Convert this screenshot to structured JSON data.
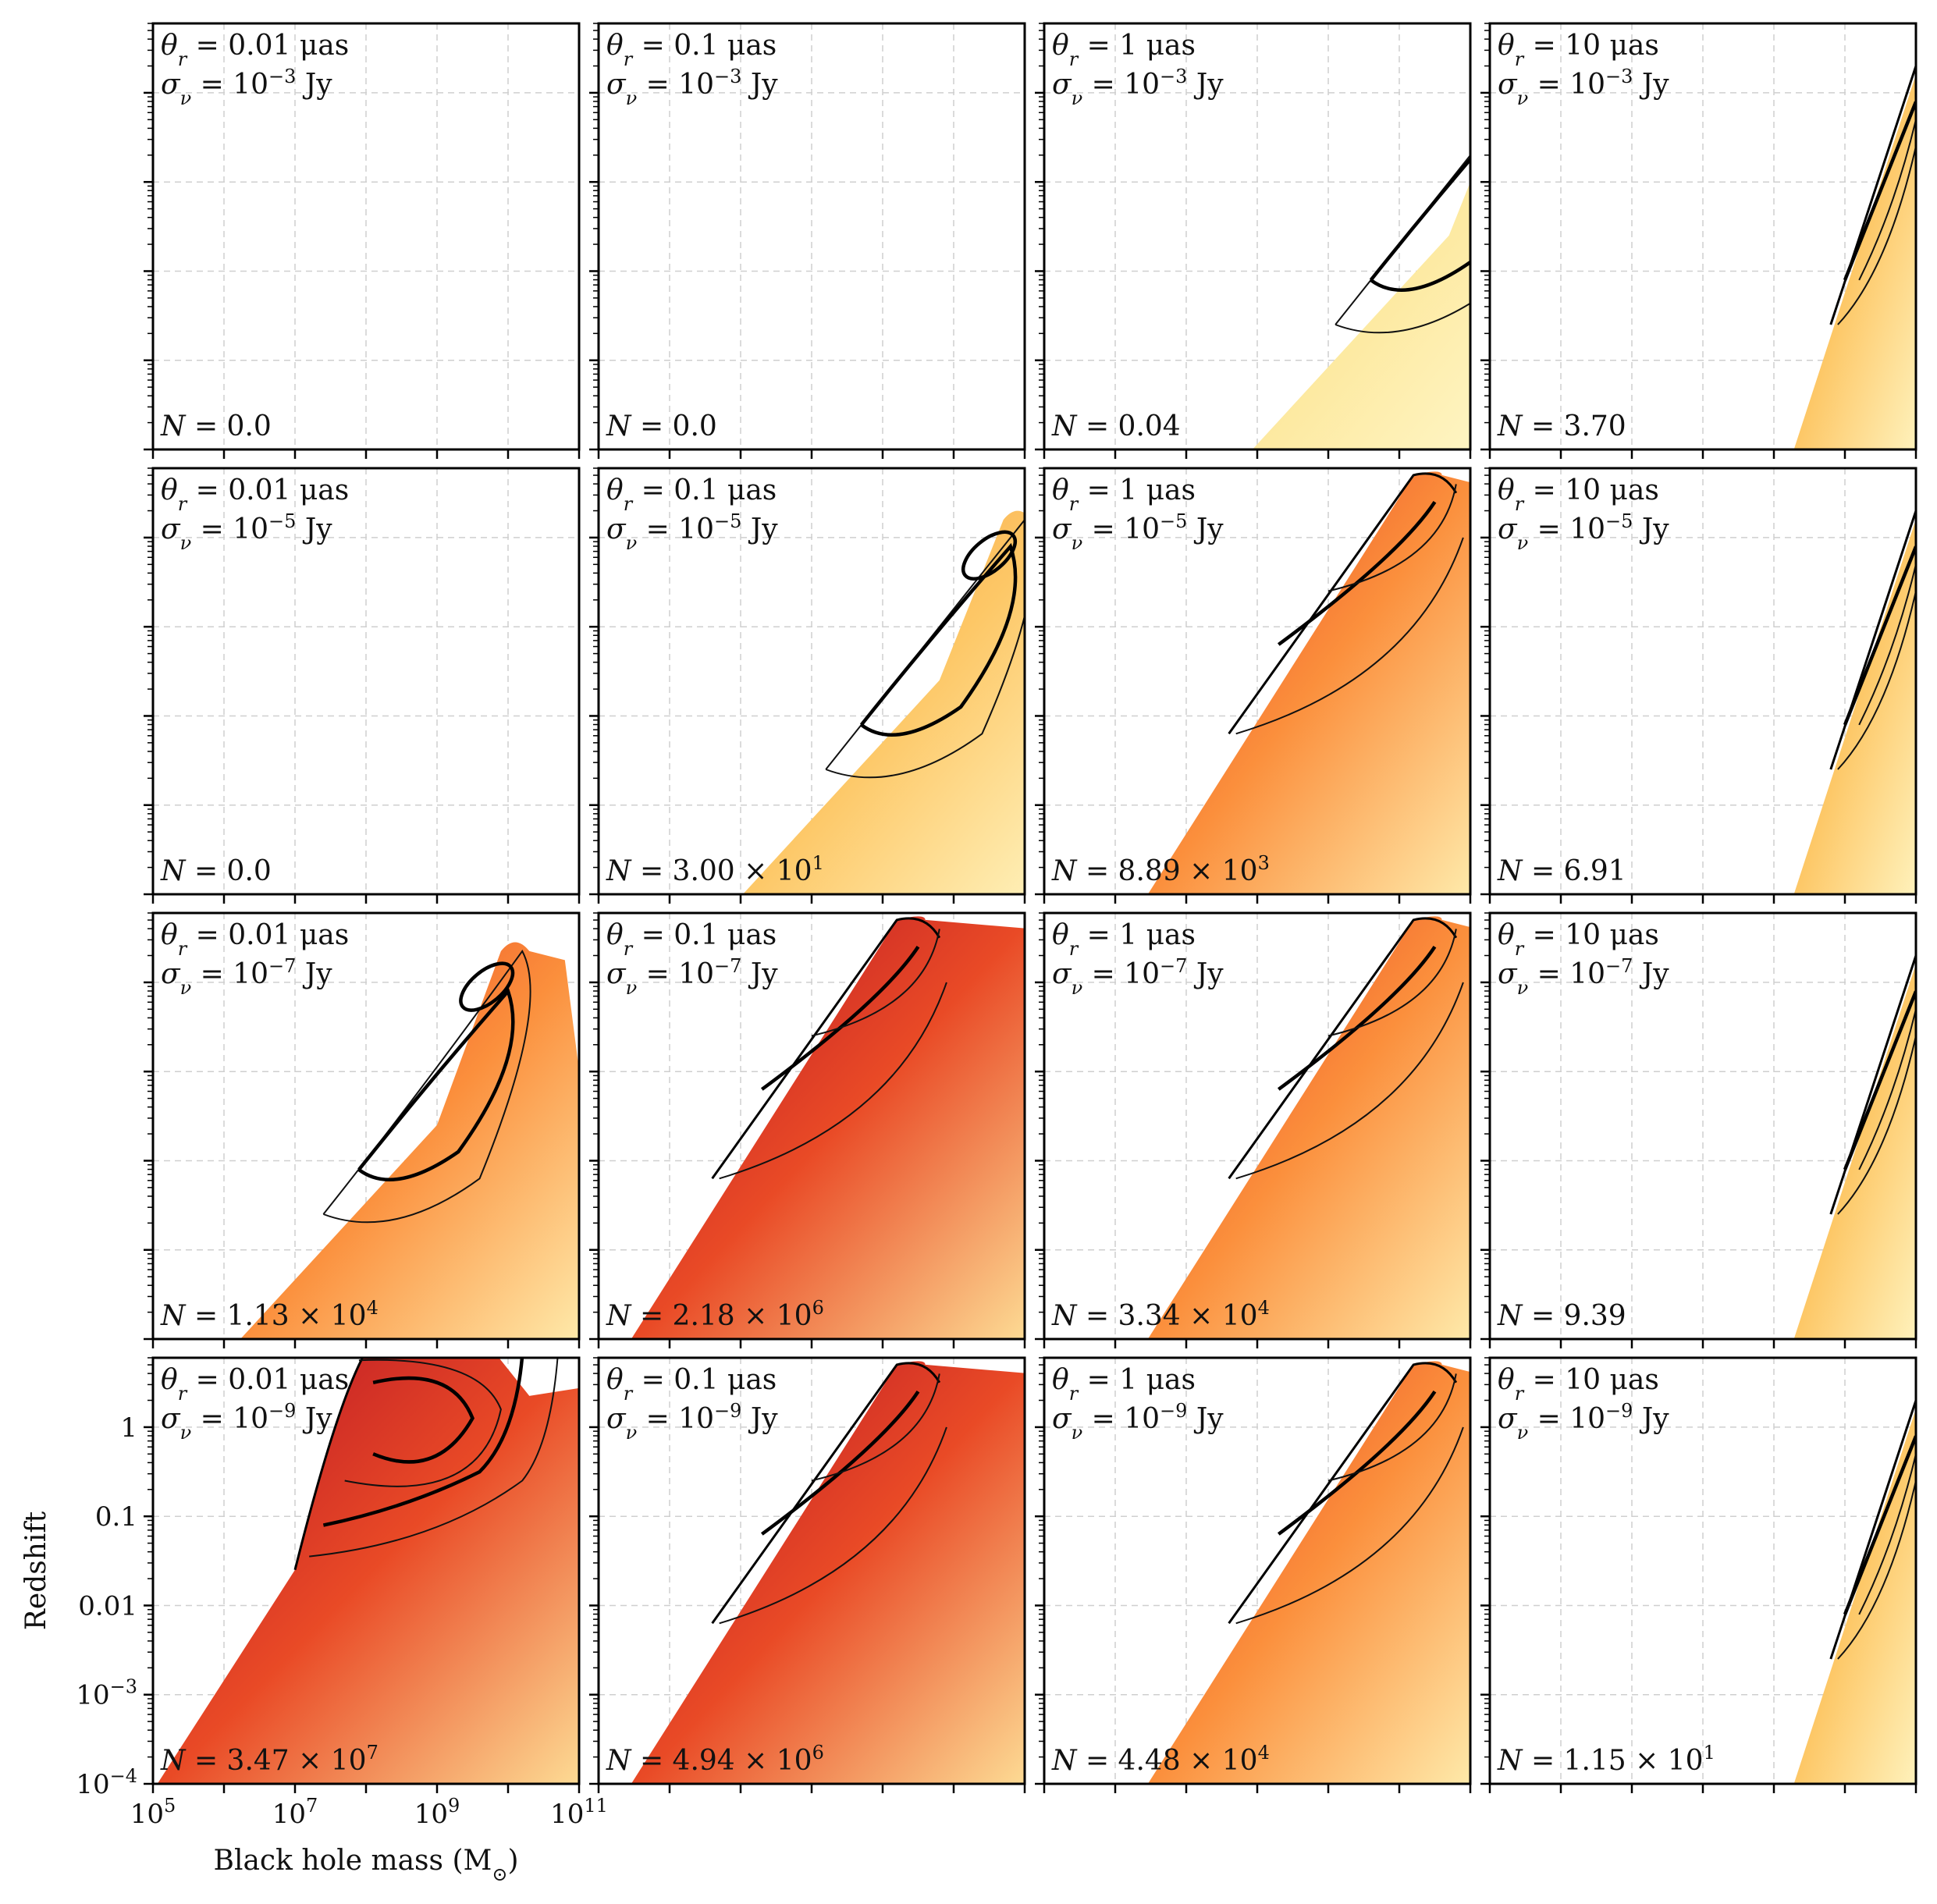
{
  "chart_data": {
    "type": "heatmap",
    "layout": {
      "rows": 4,
      "cols": 4
    },
    "xlabel": "Black hole mass (M",
    "xlabel_sub": "⊙",
    "xlabel_close": ")",
    "ylabel": "Redshift",
    "x_scale": "log",
    "y_scale": "log",
    "xlim": [
      100000,
      100000000000
    ],
    "ylim": [
      0.0001,
      6
    ],
    "x_ticks": [
      {
        "value": 100000,
        "base": "10",
        "exp": "5"
      },
      {
        "value": 10000000,
        "base": "10",
        "exp": "7"
      },
      {
        "value": 1000000000,
        "base": "10",
        "exp": "9"
      },
      {
        "value": 100000000000,
        "base": "10",
        "exp": "11"
      }
    ],
    "y_ticks": [
      {
        "value": 0.0001,
        "base": "10",
        "exp": "−4"
      },
      {
        "value": 0.001,
        "base": "10",
        "exp": "−3"
      },
      {
        "value": 0.01,
        "base": "0.01",
        "exp": ""
      },
      {
        "value": 0.1,
        "base": "0.1",
        "exp": ""
      },
      {
        "value": 1,
        "base": "1",
        "exp": ""
      }
    ],
    "grid": true,
    "theta_label": "θ",
    "theta_sub": "r",
    "sigma_label": "σ",
    "sigma_sub": "ν",
    "unit_theta": "μas",
    "unit_sigma": "Jy",
    "n_label": "N",
    "rows": [
      {
        "sigma_base": "10",
        "sigma_exp": "−3",
        "panels": [
          {
            "theta": "0.01",
            "N_mant": "0.0",
            "N_exp": ""
          },
          {
            "theta": "0.1",
            "N_mant": "0.0",
            "N_exp": ""
          },
          {
            "theta": "1",
            "N_mant": "0.04",
            "N_exp": ""
          },
          {
            "theta": "10",
            "N_mant": "3.70",
            "N_exp": ""
          }
        ]
      },
      {
        "sigma_base": "10",
        "sigma_exp": "−5",
        "panels": [
          {
            "theta": "0.01",
            "N_mant": "0.0",
            "N_exp": ""
          },
          {
            "theta": "0.1",
            "N_mant": "3.00",
            "N_exp": "1"
          },
          {
            "theta": "1",
            "N_mant": "8.89",
            "N_exp": "3"
          },
          {
            "theta": "10",
            "N_mant": "6.91",
            "N_exp": ""
          }
        ]
      },
      {
        "sigma_base": "10",
        "sigma_exp": "−7",
        "panels": [
          {
            "theta": "0.01",
            "N_mant": "1.13",
            "N_exp": "4"
          },
          {
            "theta": "0.1",
            "N_mant": "2.18",
            "N_exp": "6"
          },
          {
            "theta": "1",
            "N_mant": "3.34",
            "N_exp": "4"
          },
          {
            "theta": "10",
            "N_mant": "9.39",
            "N_exp": ""
          }
        ]
      },
      {
        "sigma_base": "10",
        "sigma_exp": "−9",
        "panels": [
          {
            "theta": "0.01",
            "N_mant": "3.47",
            "N_exp": "7"
          },
          {
            "theta": "0.1",
            "N_mant": "4.94",
            "N_exp": "6"
          },
          {
            "theta": "1",
            "N_mant": "4.48",
            "N_exp": "4"
          },
          {
            "theta": "10",
            "N_mant": "1.15",
            "N_exp": "1"
          }
        ]
      }
    ],
    "colormap": [
      "#ffffcc",
      "#fed976",
      "#fd8d3c",
      "#e31a1c",
      "#800026"
    ]
  }
}
